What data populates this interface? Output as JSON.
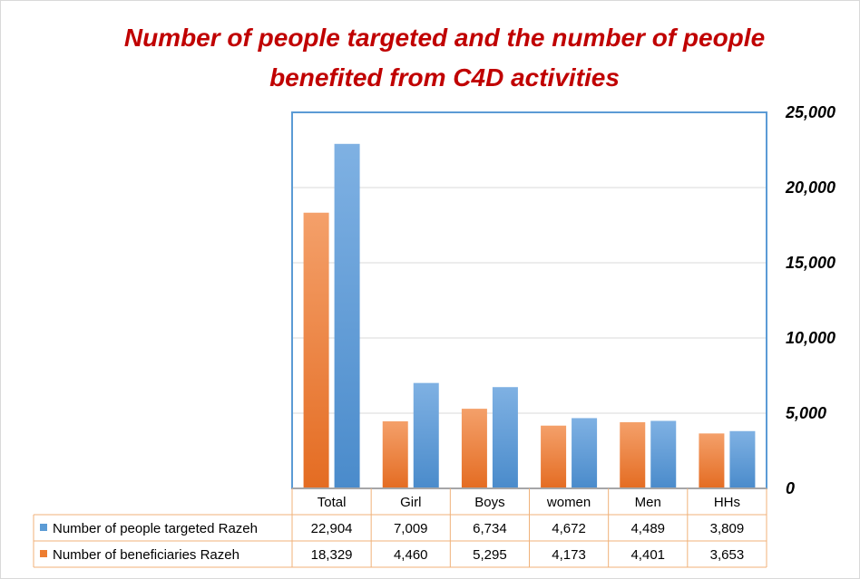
{
  "chart_data": {
    "type": "bar",
    "title_lines": [
      "Number of people targeted and the number of people",
      "benefited from C4D activities"
    ],
    "categories": [
      "Total",
      "Girl",
      "Boys",
      "women",
      "Men",
      "HHs"
    ],
    "series": [
      {
        "name": "Number of beneficiaries Razeh",
        "color": "#ed7d31",
        "values": [
          18329,
          4460,
          5295,
          4173,
          4401,
          3653
        ],
        "labels": [
          "18,329",
          "4,460",
          "5,295",
          "4,173",
          "4,401",
          "3,653"
        ]
      },
      {
        "name": "Number of people targeted Razeh",
        "color": "#5b9bd5",
        "values": [
          22904,
          7009,
          6734,
          4672,
          4489,
          3809
        ],
        "labels": [
          "22,904",
          "7,009",
          "6,734",
          "4,672",
          "4,489",
          "3,809"
        ]
      }
    ],
    "table_row_order": [
      "Number of people targeted Razeh",
      "Number of beneficiaries Razeh"
    ],
    "ylim": [
      0,
      25000
    ],
    "yticks": [
      0,
      5000,
      10000,
      15000,
      20000,
      25000
    ],
    "ytick_labels": [
      "0",
      "5,000",
      "10,000",
      "15,000",
      "20,000",
      "25,000"
    ],
    "y_axis_side": "right",
    "grid": true,
    "legend": "data table below chart"
  }
}
